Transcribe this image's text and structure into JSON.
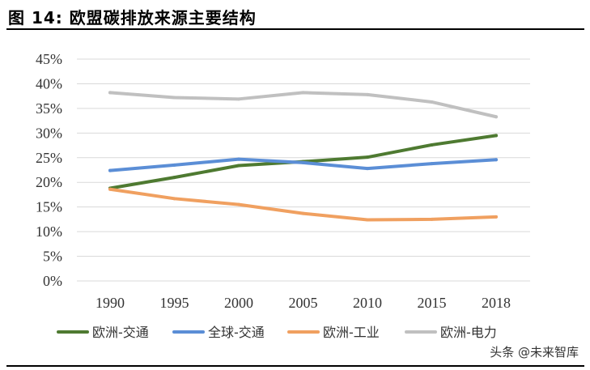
{
  "figure_title": "图 14:  欧盟碳排放来源主要结构",
  "watermark": "头条 @未来智库",
  "chart_data": {
    "type": "line",
    "title": "",
    "xlabel": "",
    "ylabel": "",
    "categories": [
      "1990",
      "1995",
      "2000",
      "2005",
      "2010",
      "2015",
      "2018"
    ],
    "ylim": [
      0,
      45
    ],
    "y_ticks": [
      "0%",
      "5%",
      "10%",
      "15%",
      "20%",
      "25%",
      "30%",
      "35%",
      "40%",
      "45%"
    ],
    "y_unit": "%",
    "grid": true,
    "legend_position": "bottom",
    "series": [
      {
        "name": "欧洲-交通",
        "color": "#4e7a31",
        "values": [
          18.8,
          21.0,
          23.4,
          24.2,
          25.1,
          27.6,
          29.5
        ]
      },
      {
        "name": "全球-交通",
        "color": "#5b8ed6",
        "values": [
          22.4,
          23.5,
          24.7,
          24.0,
          22.8,
          23.8,
          24.6
        ]
      },
      {
        "name": "欧洲-工业",
        "color": "#f0a060",
        "values": [
          18.6,
          16.7,
          15.5,
          13.7,
          12.4,
          12.5,
          13.0
        ]
      },
      {
        "name": "欧洲-电力",
        "color": "#c0c0c0",
        "values": [
          38.2,
          37.2,
          36.9,
          38.2,
          37.8,
          36.3,
          33.3
        ]
      }
    ]
  }
}
